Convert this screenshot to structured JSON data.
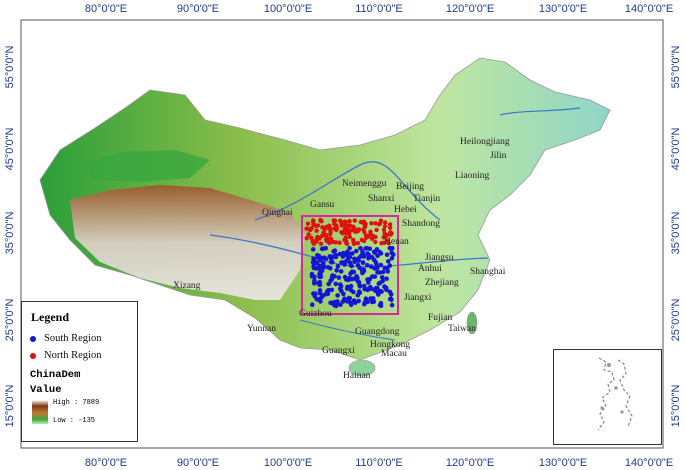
{
  "axes": {
    "lon_ticks": [
      "80°0'0\"E",
      "90°0'0\"E",
      "100°0'0\"E",
      "110°0'0\"E",
      "120°0'0\"E",
      "130°0'0\"E",
      "140°0'0\"E"
    ],
    "lat_ticks": [
      "55°0'0\"N",
      "45°0'0\"N",
      "35°0'0\"N",
      "25°0'0\"N",
      "15°0'0\"N"
    ]
  },
  "places": [
    "Heilongjiang",
    "Jilin",
    "Liaoning",
    "Neimenggu",
    "Beijing",
    "Tianjin",
    "Shanxi",
    "Hebei",
    "Shandong",
    "Henan",
    "Jiangsu",
    "Shanghai",
    "Anhui",
    "Zhejiang",
    "Jiangxi",
    "Fujian",
    "Taiwan",
    "Guangdong",
    "Hongkong",
    "Macau",
    "Guangxi",
    "Hainan",
    "Yunnan",
    "Guizhou",
    "Xizang",
    "Qinghai",
    "Gansu"
  ],
  "legend": {
    "title": "Legend",
    "items": [
      {
        "label": "South Region",
        "color": "#1515d6"
      },
      {
        "label": "North Region",
        "color": "#e01010"
      }
    ],
    "layer_name": "ChinaDem",
    "value_label": "Value",
    "high_label": "High : 7889",
    "low_label": "Low : -135"
  },
  "colors": {
    "study_box": "#e0249a",
    "south_points": "#1515d6",
    "north_points": "#e01010",
    "river": "#3b78c8"
  }
}
